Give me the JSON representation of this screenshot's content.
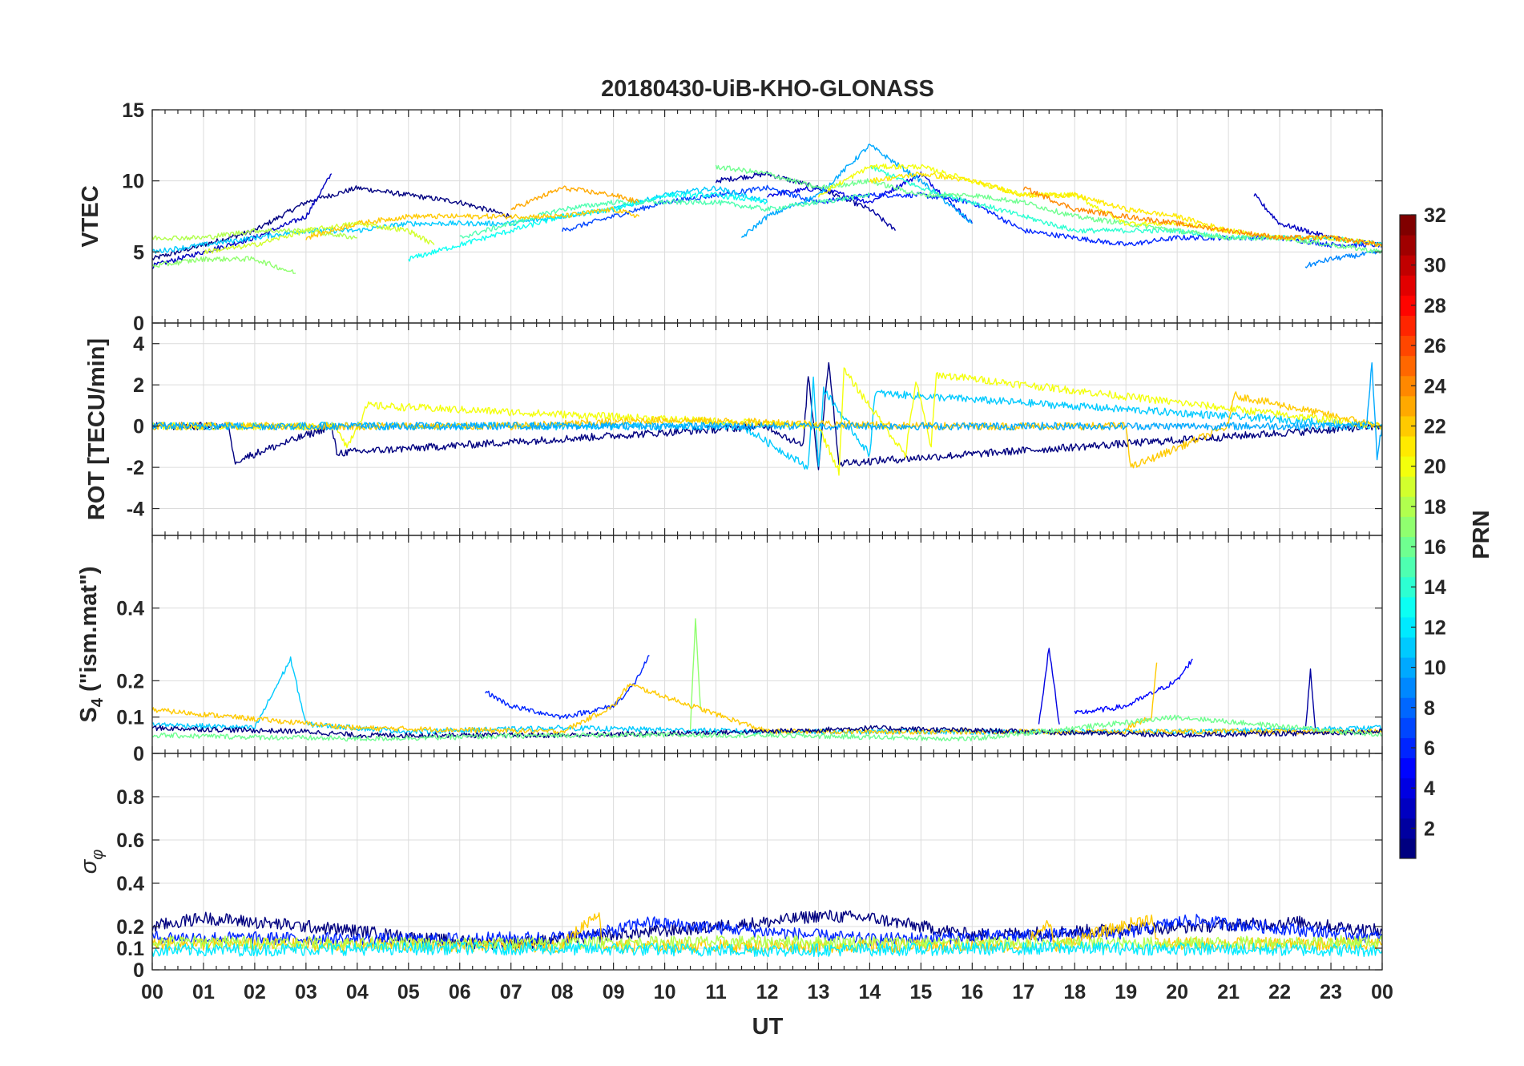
{
  "chart_data": {
    "type": "line",
    "title": "20180430-UiB-KHO-GLONASS",
    "xlabel": "UT",
    "x_tick_labels": [
      "00",
      "01",
      "02",
      "03",
      "04",
      "05",
      "06",
      "07",
      "08",
      "09",
      "10",
      "11",
      "12",
      "13",
      "14",
      "15",
      "16",
      "17",
      "18",
      "19",
      "20",
      "21",
      "22",
      "23",
      "00"
    ],
    "xlim": [
      0,
      24
    ],
    "colorbar": {
      "label": "PRN",
      "colormap": "jet",
      "range": [
        1,
        32
      ],
      "tick_labels": [
        "2",
        "4",
        "6",
        "8",
        "10",
        "12",
        "14",
        "16",
        "18",
        "20",
        "22",
        "24",
        "26",
        "28",
        "30",
        "32"
      ]
    },
    "panels": [
      {
        "ylabel": "VTEC",
        "ylim": [
          0,
          15
        ],
        "y_tick_labels": [
          "0",
          "5",
          "10",
          "15"
        ],
        "series": [
          {
            "prn": 1,
            "x": [
              0,
              1,
              2,
              3,
              4,
              5,
              6,
              7
            ],
            "y": [
              4.5,
              5.5,
              6.5,
              8.5,
              9.5,
              9,
              8.5,
              7.5
            ]
          },
          {
            "prn": 3,
            "x": [
              0,
              1,
              2,
              3,
              3.5
            ],
            "y": [
              4,
              5,
              6,
              7.5,
              10.5
            ]
          },
          {
            "prn": 2,
            "x": [
              11,
              12,
              13,
              14,
              14.5
            ],
            "y": [
              10,
              10.5,
              9.5,
              8,
              6.5
            ]
          },
          {
            "prn": 4,
            "x": [
              12,
              13,
              14,
              15,
              16
            ],
            "y": [
              9,
              9.5,
              8.5,
              10.5,
              7
            ]
          },
          {
            "prn": 6,
            "x": [
              13,
              14,
              15,
              16,
              17,
              18,
              19,
              20,
              21,
              22,
              23,
              24
            ],
            "y": [
              8.5,
              9,
              9,
              8.5,
              6.5,
              6,
              5.5,
              6,
              6,
              6,
              5.5,
              5.5
            ]
          },
          {
            "prn": 3,
            "x": [
              21.5,
              22,
              23,
              24
            ],
            "y": [
              9,
              7,
              6,
              5.5
            ]
          },
          {
            "prn": 7,
            "x": [
              8,
              9,
              10,
              11,
              12,
              13
            ],
            "y": [
              6.5,
              7.5,
              8.5,
              9,
              9.5,
              8.5
            ]
          },
          {
            "prn": 11,
            "x": [
              0,
              1,
              2,
              3,
              4,
              5,
              6,
              7,
              8,
              9,
              10,
              11,
              12
            ],
            "y": [
              5,
              5.5,
              6,
              6.5,
              6.5,
              7,
              7,
              7,
              7.5,
              8,
              9,
              9.5,
              8.5
            ]
          },
          {
            "prn": 10,
            "x": [
              11.5,
              12,
              13,
              14,
              15,
              16
            ],
            "y": [
              6,
              7.5,
              9,
              12.5,
              10,
              7
            ]
          },
          {
            "prn": 9,
            "x": [
              22.5,
              23,
              24
            ],
            "y": [
              4,
              4.5,
              5
            ]
          },
          {
            "prn": 13,
            "x": [
              5,
              6,
              7,
              8,
              9,
              10,
              11,
              12
            ],
            "y": [
              4.5,
              5.5,
              6.5,
              7.5,
              8,
              9,
              9,
              8.5
            ]
          },
          {
            "prn": 14,
            "x": [
              14,
              15,
              16,
              17,
              18,
              19,
              20,
              21,
              22,
              23,
              24
            ],
            "y": [
              11,
              9.5,
              8.5,
              7.5,
              6.5,
              6.5,
              6.5,
              6,
              6,
              6,
              5.5
            ]
          },
          {
            "prn": 15,
            "x": [
              6,
              7,
              8,
              9,
              10,
              11,
              12,
              13,
              14
            ],
            "y": [
              6,
              7,
              8,
              8.5,
              8.5,
              8.5,
              8,
              8.5,
              9
            ]
          },
          {
            "prn": 16,
            "x": [
              11,
              12,
              13,
              14,
              15,
              16,
              17,
              18,
              19,
              20,
              21,
              22,
              23,
              24
            ],
            "y": [
              11,
              10.5,
              9.5,
              10,
              9,
              9,
              8.5,
              7.5,
              7,
              6.5,
              6,
              6,
              5.5,
              5
            ]
          },
          {
            "prn": 17,
            "x": [
              0,
              1,
              2,
              2.8
            ],
            "y": [
              4,
              4.5,
              4.5,
              3.5
            ]
          },
          {
            "prn": 18,
            "x": [
              0,
              1,
              2,
              3,
              4
            ],
            "y": [
              6,
              6,
              6.5,
              6.5,
              6
            ]
          },
          {
            "prn": 19,
            "x": [
              1,
              2,
              3,
              4,
              5,
              5.5
            ],
            "y": [
              5,
              5.5,
              6.5,
              7,
              6.5,
              5.5
            ]
          },
          {
            "prn": 20,
            "x": [
              13,
              14,
              15,
              16,
              17,
              18,
              19,
              20,
              21,
              22,
              23,
              24
            ],
            "y": [
              9,
              11,
              11,
              10,
              9,
              9,
              7,
              7,
              6.5,
              6,
              6,
              5.5
            ]
          },
          {
            "prn": 21,
            "x": [
              14,
              15,
              16,
              17,
              18,
              19,
              20,
              21
            ],
            "y": [
              10,
              10.5,
              10,
              9,
              9,
              8,
              7.5,
              6.5
            ]
          },
          {
            "prn": 22,
            "x": [
              3,
              4,
              5,
              6,
              7,
              8,
              9,
              9.5
            ],
            "y": [
              6,
              7,
              7.5,
              7.5,
              7.5,
              7.5,
              8,
              7.5
            ]
          },
          {
            "prn": 23,
            "x": [
              7,
              8,
              9,
              9.5
            ],
            "y": [
              8,
              9.5,
              9,
              8.5
            ]
          },
          {
            "prn": 24,
            "x": [
              17,
              18,
              19,
              20,
              21,
              22,
              23,
              24
            ],
            "y": [
              9.5,
              8,
              7.5,
              7,
              6.5,
              6,
              6,
              5.5
            ]
          }
        ]
      },
      {
        "ylabel": "ROT [TECU/min]",
        "ylim": [
          -5.3,
          5
        ],
        "y_tick_labels": [
          "-4",
          "-2",
          "0",
          "2",
          "4"
        ],
        "series": [
          {
            "prn": 1,
            "x": [
              0,
              1.5,
              1.6,
              3.5,
              3.6,
              12,
              12.7,
              12.8,
              13,
              13.2,
              13.4,
              24
            ],
            "y": [
              0,
              0,
              -1.7,
              0,
              -1.3,
              0,
              -1,
              2.5,
              -2,
              3.2,
              -1.8,
              0
            ]
          },
          {
            "prn": 11,
            "x": [
              0,
              11.5,
              12.8,
              12.9,
              13,
              13.1,
              13.6,
              14,
              14.1,
              24
            ],
            "y": [
              0,
              0,
              -2,
              2.3,
              -2.1,
              1.8,
              0,
              -1.4,
              1.6,
              0
            ]
          },
          {
            "prn": 20,
            "x": [
              0,
              3.6,
              3.8,
              4.2,
              13,
              13.4,
              13.5,
              14.7,
              14.9,
              15.2,
              15.3,
              24
            ],
            "y": [
              0,
              0,
              -1,
              1,
              0,
              -2.2,
              2.7,
              -1.4,
              2.2,
              -1,
              2.5,
              0
            ]
          },
          {
            "prn": 22,
            "x": [
              0,
              7,
              10,
              15,
              19,
              19.1,
              21,
              21.1,
              24
            ],
            "y": [
              0,
              0,
              0.3,
              0,
              0,
              -2,
              0,
              1.5,
              0
            ]
          },
          {
            "prn": 10,
            "x": [
              0,
              23.7,
              23.8,
              23.9,
              24
            ],
            "y": [
              0,
              0,
              3,
              -1.5,
              0
            ]
          }
        ]
      },
      {
        "ylabel": "S4 (\"ism.mat\")",
        "ylabel_main": "S",
        "ylabel_sub": "4",
        "ylabel_rest": " (\"ism.mat\")",
        "ylim": [
          0,
          0.6
        ],
        "y_tick_labels": [
          "0",
          "0.1",
          "0.2",
          "0.4"
        ],
        "series": [
          {
            "prn": 6,
            "x": [
              6.5,
              7,
              8,
              9,
              9.4,
              9.7
            ],
            "y": [
              0.17,
              0.13,
              0.1,
              0.13,
              0.19,
              0.27
            ]
          },
          {
            "prn": 5,
            "x": [
              18,
              19,
              20,
              20.3
            ],
            "y": [
              0.11,
              0.13,
              0.2,
              0.26
            ]
          },
          {
            "prn": 17,
            "x": [
              10.5,
              10.6,
              10.7
            ],
            "y": [
              0.07,
              0.37,
              0.12
            ]
          },
          {
            "prn": 4,
            "x": [
              17.3,
              17.5,
              17.7
            ],
            "y": [
              0.08,
              0.29,
              0.08
            ]
          },
          {
            "prn": 2,
            "x": [
              22.5,
              22.6,
              22.7
            ],
            "y": [
              0.06,
              0.23,
              0.06
            ]
          },
          {
            "prn": 22,
            "x": [
              19,
              19.5,
              19.6
            ],
            "y": [
              0.07,
              0.1,
              0.25
            ]
          },
          {
            "prn": 11,
            "x": [
              0,
              2,
              2.7,
              3,
              5,
              8,
              12,
              16,
              20,
              24
            ],
            "y": [
              0.08,
              0.07,
              0.26,
              0.08,
              0.06,
              0.07,
              0.06,
              0.06,
              0.06,
              0.07
            ]
          },
          {
            "prn": 22,
            "x": [
              0,
              4,
              8,
              9,
              9.3,
              12,
              16,
              20,
              24
            ],
            "y": [
              0.12,
              0.07,
              0.06,
              0.13,
              0.19,
              0.06,
              0.06,
              0.06,
              0.06
            ]
          },
          {
            "prn": 1,
            "x": [
              0,
              3,
              4,
              8,
              12,
              14,
              17,
              20,
              24
            ],
            "y": [
              0.07,
              0.06,
              0.05,
              0.05,
              0.06,
              0.07,
              0.06,
              0.05,
              0.06
            ]
          },
          {
            "prn": 16,
            "x": [
              0,
              4,
              8,
              12,
              16,
              20,
              24
            ],
            "y": [
              0.05,
              0.04,
              0.05,
              0.05,
              0.04,
              0.1,
              0.05
            ]
          }
        ]
      },
      {
        "ylabel": "σφ",
        "ylabel_main": "σ",
        "ylabel_sub": "φ",
        "ylim": [
          0,
          1
        ],
        "y_tick_labels": [
          "0",
          "0.1",
          "0.2",
          "0.4",
          "0.6",
          "0.8"
        ],
        "series": [
          {
            "prn": 1,
            "x": [
              0,
              1,
              2,
              3,
              4,
              5,
              6,
              7,
              12,
              13,
              14,
              15,
              16,
              22.5,
              23,
              24
            ],
            "y": [
              0.2,
              0.24,
              0.22,
              0.2,
              0.18,
              0.15,
              0.13,
              0.12,
              0.22,
              0.25,
              0.24,
              0.2,
              0.16,
              0.22,
              0.2,
              0.18
            ]
          },
          {
            "prn": 6,
            "x": [
              0,
              5,
              8,
              9,
              9.6,
              14,
              19,
              20.2,
              24
            ],
            "y": [
              0.15,
              0.14,
              0.15,
              0.18,
              0.22,
              0.14,
              0.17,
              0.23,
              0.15
            ]
          },
          {
            "prn": 22,
            "x": [
              0,
              8,
              8.7,
              8.8,
              12,
              17,
              17.5,
              17.6,
              19.5,
              19.6,
              24
            ],
            "y": [
              0.12,
              0.11,
              0.27,
              0.11,
              0.11,
              0.11,
              0.22,
              0.11,
              0.24,
              0.12,
              0.12
            ]
          },
          {
            "prn": 18,
            "x": [
              0,
              6,
              12,
              18,
              24
            ],
            "y": [
              0.13,
              0.12,
              0.13,
              0.12,
              0.13
            ]
          },
          {
            "prn": 12,
            "x": [
              0,
              6,
              12,
              18,
              24
            ],
            "y": [
              0.09,
              0.1,
              0.09,
              0.1,
              0.09
            ]
          }
        ]
      }
    ]
  }
}
